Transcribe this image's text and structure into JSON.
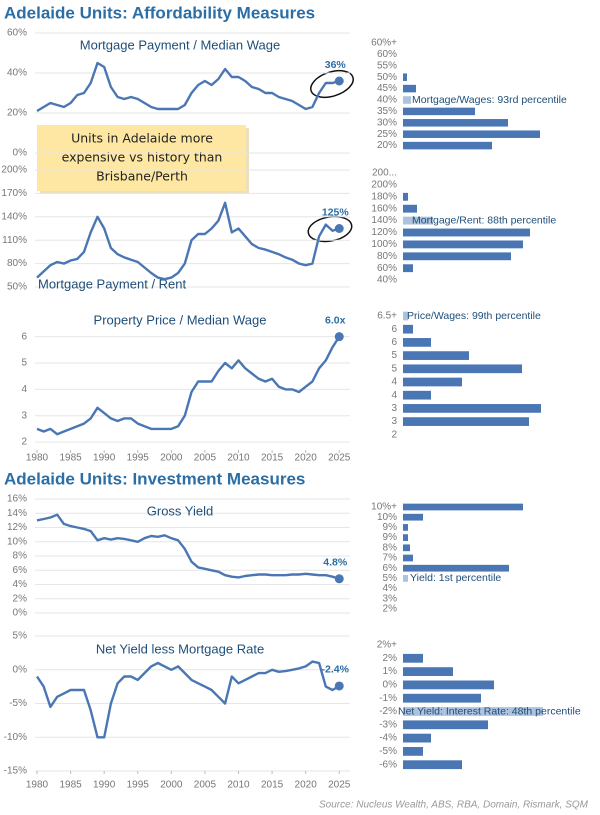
{
  "headings": [
    "Adelaide Units: Affordability Measures",
    "Adelaide Units: Investment Measures"
  ],
  "note": [
    "Units in Adelaide more",
    "expensive vs history than",
    "Brisbane/Perth"
  ],
  "source": "Source: Nucleus Wealth, ABS, RBA, Domain, Rismark, SQM",
  "chart_data": [
    {
      "type": "line",
      "title": "Mortgage Payment / Median Wage",
      "color": "#4a77b4",
      "x": [
        1980,
        1981,
        1982,
        1983,
        1984,
        1985,
        1986,
        1987,
        1988,
        1989,
        1990,
        1991,
        1992,
        1993,
        1994,
        1995,
        1996,
        1997,
        1998,
        1999,
        2000,
        2001,
        2002,
        2003,
        2004,
        2005,
        2006,
        2007,
        2008,
        2009,
        2010,
        2011,
        2012,
        2013,
        2014,
        2015,
        2016,
        2017,
        2018,
        2019,
        2020,
        2021,
        2022,
        2023,
        2024,
        2025
      ],
      "values": [
        21,
        23,
        25,
        24,
        23,
        25,
        29,
        30,
        35,
        45,
        43,
        33,
        28,
        27,
        28,
        27,
        25,
        23,
        22,
        22,
        22,
        22,
        24,
        30,
        34,
        36,
        34,
        37,
        42,
        38,
        38,
        36,
        33,
        32,
        30,
        30,
        28,
        27,
        26,
        24,
        22,
        23,
        30,
        35,
        35,
        36
      ],
      "end_label": "36%",
      "xlim": [
        1979.7,
        2026.6
      ],
      "ylim": [
        0,
        60
      ],
      "yticks": [
        {
          "value": 0,
          "label": "0%"
        },
        {
          "value": 20,
          "label": "20%"
        },
        {
          "value": 40,
          "label": "40%"
        },
        {
          "value": 60,
          "label": "60%"
        }
      ],
      "grid": true
    },
    {
      "type": "hbar",
      "categories": [
        "60%+",
        "60%",
        "55%",
        "50%",
        "45%",
        "40%",
        "35%",
        "30%",
        "25%",
        "20%"
      ],
      "values": [
        0,
        0,
        0,
        4,
        13,
        8,
        72,
        105,
        137,
        89
      ],
      "color": "#4a77b4",
      "xlim": [
        0,
        140
      ],
      "annotation": "Mortgage/Wages: 93rd percentile"
    },
    {
      "type": "line",
      "title": "Mortgage Payment / Rent",
      "color": "#4a77b4",
      "x": [
        1980,
        1981,
        1982,
        1983,
        1984,
        1985,
        1986,
        1987,
        1988,
        1989,
        1990,
        1991,
        1992,
        1993,
        1994,
        1995,
        1996,
        1997,
        1998,
        1999,
        2000,
        2001,
        2002,
        2003,
        2004,
        2005,
        2006,
        2007,
        2008,
        2009,
        2010,
        2011,
        2012,
        2013,
        2014,
        2015,
        2016,
        2017,
        2018,
        2019,
        2020,
        2021,
        2022,
        2023,
        2024,
        2025
      ],
      "values": [
        62,
        70,
        78,
        82,
        80,
        84,
        86,
        95,
        120,
        140,
        125,
        100,
        92,
        88,
        85,
        82,
        75,
        68,
        62,
        60,
        62,
        68,
        80,
        110,
        118,
        118,
        125,
        135,
        158,
        120,
        125,
        115,
        105,
        100,
        98,
        95,
        92,
        88,
        85,
        80,
        78,
        80,
        115,
        130,
        122,
        125
      ],
      "end_label": "125%",
      "xlim": [
        1979.7,
        2026.6
      ],
      "ylim": [
        50,
        200
      ],
      "yticks": [
        {
          "value": 50,
          "label": "50%"
        },
        {
          "value": 80,
          "label": "80%"
        },
        {
          "value": 110,
          "label": "110%"
        },
        {
          "value": 140,
          "label": "140%"
        },
        {
          "value": 170,
          "label": "170%"
        },
        {
          "value": 200,
          "label": "200%"
        }
      ],
      "grid": true
    },
    {
      "type": "hbar",
      "categories": [
        "200...",
        "200%",
        "180%",
        "160%",
        "140%",
        "120%",
        "100%",
        "80%",
        "60%",
        "40%"
      ],
      "values": [
        0,
        0,
        5,
        14,
        30,
        127,
        120,
        108,
        10,
        0
      ],
      "color": "#4a77b4",
      "xlim": [
        0,
        140
      ],
      "annotation": "Mortgage/Rent: 88th percentile"
    },
    {
      "type": "line",
      "title": "Property Price / Median Wage",
      "color": "#4a77b4",
      "x": [
        1980,
        1981,
        1982,
        1983,
        1984,
        1985,
        1986,
        1987,
        1988,
        1989,
        1990,
        1991,
        1992,
        1993,
        1994,
        1995,
        1996,
        1997,
        1998,
        1999,
        2000,
        2001,
        2002,
        2003,
        2004,
        2005,
        2006,
        2007,
        2008,
        2009,
        2010,
        2011,
        2012,
        2013,
        2014,
        2015,
        2016,
        2017,
        2018,
        2019,
        2020,
        2021,
        2022,
        2023,
        2024,
        2025
      ],
      "values": [
        2.5,
        2.4,
        2.5,
        2.3,
        2.4,
        2.5,
        2.6,
        2.7,
        2.9,
        3.3,
        3.1,
        2.9,
        2.8,
        2.9,
        2.9,
        2.7,
        2.6,
        2.5,
        2.5,
        2.5,
        2.5,
        2.6,
        3.0,
        3.9,
        4.3,
        4.3,
        4.3,
        4.7,
        5.0,
        4.8,
        5.1,
        4.8,
        4.6,
        4.4,
        4.3,
        4.4,
        4.1,
        4.0,
        4.0,
        3.9,
        4.1,
        4.3,
        4.8,
        5.1,
        5.6,
        6.0
      ],
      "end_label": "6.0x",
      "xlim": [
        1979.7,
        2026.6
      ],
      "ylim": [
        1.7,
        7.2
      ],
      "yticks": [
        2,
        3,
        4,
        5,
        6
      ],
      "xticks": [
        1980,
        1985,
        1990,
        1995,
        2000,
        2005,
        2010,
        2015,
        2020,
        2025
      ],
      "grid": true
    },
    {
      "type": "hbar",
      "categories": [
        "6.5+",
        "6",
        "6",
        "5",
        "5",
        "4",
        "4",
        "3",
        "3",
        "2"
      ],
      "values": [
        5,
        10,
        28,
        66,
        119,
        59,
        28,
        138,
        126,
        0
      ],
      "color": "#4a77b4",
      "xlim": [
        0,
        140
      ],
      "annotation": "Price/Wages: 99th percentile"
    },
    {
      "type": "line",
      "title": "Gross Yield",
      "color": "#4a77b4",
      "x": [
        1980,
        1981,
        1982,
        1983,
        1984,
        1985,
        1986,
        1987,
        1988,
        1989,
        1990,
        1991,
        1992,
        1993,
        1994,
        1995,
        1996,
        1997,
        1998,
        1999,
        2000,
        2001,
        2002,
        2003,
        2004,
        2005,
        2006,
        2007,
        2008,
        2009,
        2010,
        2011,
        2012,
        2013,
        2014,
        2015,
        2016,
        2017,
        2018,
        2019,
        2020,
        2021,
        2022,
        2023,
        2024,
        2025
      ],
      "values": [
        13,
        13.2,
        13.4,
        13.8,
        12.5,
        12.2,
        12,
        11.8,
        11.5,
        10.2,
        10.5,
        10.3,
        10.5,
        10.4,
        10.2,
        10,
        10.5,
        10.8,
        10.7,
        10.9,
        10.5,
        10.2,
        9,
        7.2,
        6.4,
        6.2,
        6,
        5.8,
        5.3,
        5.1,
        5,
        5.2,
        5.3,
        5.4,
        5.4,
        5.3,
        5.3,
        5.3,
        5.4,
        5.4,
        5.5,
        5.4,
        5.3,
        5.3,
        5.1,
        4.8
      ],
      "end_label": "4.8%",
      "xlim": [
        1979.7,
        2026.6
      ],
      "ylim": [
        0,
        16
      ],
      "yticks": [
        {
          "value": 0,
          "label": "0%"
        },
        {
          "value": 2,
          "label": "2%"
        },
        {
          "value": 4,
          "label": "4%"
        },
        {
          "value": 6,
          "label": "6%"
        },
        {
          "value": 8,
          "label": "8%"
        },
        {
          "value": 10,
          "label": "10%"
        },
        {
          "value": 12,
          "label": "12%"
        },
        {
          "value": 14,
          "label": "14%"
        },
        {
          "value": 16,
          "label": "16%"
        }
      ],
      "grid": true
    },
    {
      "type": "hbar",
      "categories": [
        "10%+",
        "10%",
        "9%",
        "9%",
        "8%",
        "7%",
        "6%",
        "5%",
        "4%",
        "3%",
        "2%"
      ],
      "values": [
        120,
        20,
        5,
        5,
        7,
        10,
        106,
        5,
        0,
        0,
        0
      ],
      "color": "#4a77b4",
      "xlim": [
        0,
        140
      ],
      "annotation": "Yield: 1st percentile"
    },
    {
      "type": "line",
      "title": "Net Yield less Mortgage Rate",
      "color": "#4a77b4",
      "x": [
        1980,
        1981,
        1982,
        1983,
        1984,
        1985,
        1986,
        1987,
        1988,
        1989,
        1990,
        1991,
        1992,
        1993,
        1994,
        1995,
        1996,
        1997,
        1998,
        1999,
        2000,
        2001,
        2002,
        2003,
        2004,
        2005,
        2006,
        2007,
        2008,
        2009,
        2010,
        2011,
        2012,
        2013,
        2014,
        2015,
        2016,
        2017,
        2018,
        2019,
        2020,
        2021,
        2022,
        2023,
        2024,
        2025
      ],
      "values": [
        -1,
        -2.5,
        -5.5,
        -4,
        -3.5,
        -3,
        -3,
        -3,
        -6,
        -10,
        -10,
        -5,
        -2,
        -1,
        -1,
        -1.5,
        -0.5,
        0.5,
        1,
        0.5,
        0,
        0.5,
        -0.5,
        -1.5,
        -2,
        -2.5,
        -3,
        -4,
        -5,
        -1,
        -2,
        -1.5,
        -1,
        -0.5,
        -0.5,
        0,
        -0.3,
        -0.2,
        0,
        0.2,
        0.5,
        1.2,
        1,
        -2.5,
        -3,
        -2.4
      ],
      "end_label": "-2.4%",
      "xlim": [
        1979.7,
        2026.6
      ],
      "ylim": [
        -15,
        5
      ],
      "yticks": [
        {
          "value": -15,
          "label": "-15%"
        },
        {
          "value": -10,
          "label": "-10%"
        },
        {
          "value": -5,
          "label": "-5%"
        },
        {
          "value": 0,
          "label": "0%"
        },
        {
          "value": 5,
          "label": "5%"
        }
      ],
      "xticks": [
        1980,
        1985,
        1990,
        1995,
        2000,
        2005,
        2010,
        2015,
        2020,
        2025
      ],
      "grid": true
    },
    {
      "type": "hbar",
      "categories": [
        "2%+",
        "2%",
        "1%",
        "0%",
        "-1%",
        "-2%",
        "-3%",
        "-4%",
        "-5%",
        "-6%"
      ],
      "values": [
        0,
        20,
        50,
        91,
        78,
        140,
        85,
        28,
        20,
        59
      ],
      "color": "#4a77b4",
      "xlim": [
        0,
        140
      ],
      "annotation": "Net Yield: Interest Rate: 48th percentile"
    }
  ]
}
